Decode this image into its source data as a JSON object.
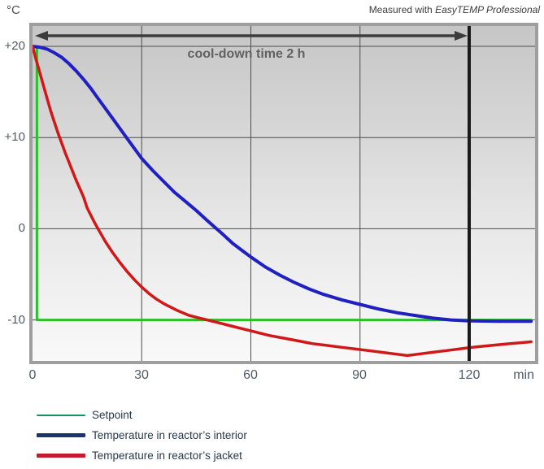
{
  "attribution": {
    "prefix": "Measured with ",
    "product": "EasyTEMP Professional"
  },
  "annotation": {
    "cooldown_label": "cool-down time 2 h",
    "arrow_from_min": 0,
    "arrow_to_min": 120
  },
  "axes": {
    "y_unit": "°C",
    "x_unit": "min",
    "y_ticks": [
      "+20",
      "+10",
      "0",
      "-10"
    ],
    "y_tick_values": [
      20,
      10,
      0,
      -10
    ],
    "x_ticks": [
      "0",
      "30",
      "60",
      "90",
      "120"
    ],
    "x_tick_values": [
      0,
      30,
      60,
      90,
      120
    ]
  },
  "legend": [
    {
      "label": "Setpoint",
      "color": "#15955d"
    },
    {
      "label": "Temperature in reactor’s interior",
      "color": "#1e3272"
    },
    {
      "label": "Temperature in reactor’s jacket",
      "color": "#c41a2b"
    }
  ],
  "colors": {
    "grid": "#4d4d4d",
    "marker_line": "#1a1a1a",
    "arrow": "#3c3c3c",
    "plot_border": "#9e9e9e"
  },
  "chart_data": {
    "type": "line",
    "title": "",
    "xlabel": "min",
    "ylabel": "°C",
    "xlim": [
      0,
      137
    ],
    "ylim": [
      -14.7,
      22.3
    ],
    "x_gridlines": [
      30,
      60,
      90
    ],
    "y_gridlines": [
      20,
      10,
      0,
      -10
    ],
    "marker_line_x": 120,
    "series": [
      {
        "name": "Setpoint",
        "color": "#2dbe2d",
        "width": 3,
        "points": [
          [
            1.2,
            20
          ],
          [
            1.2,
            -10
          ],
          [
            137,
            -10
          ]
        ]
      },
      {
        "name": "Temperature in reactor's interior",
        "color": "#2020c0",
        "width": 4,
        "points": [
          [
            0,
            20
          ],
          [
            2,
            19.9
          ],
          [
            4,
            19.7
          ],
          [
            6,
            19.3
          ],
          [
            8,
            18.8
          ],
          [
            10,
            18.1
          ],
          [
            12,
            17.3
          ],
          [
            14,
            16.4
          ],
          [
            16,
            15.4
          ],
          [
            18,
            14.3
          ],
          [
            20,
            13.2
          ],
          [
            22,
            12.1
          ],
          [
            24,
            11.0
          ],
          [
            26,
            9.9
          ],
          [
            28,
            8.8
          ],
          [
            30,
            7.7
          ],
          [
            33,
            6.4
          ],
          [
            36,
            5.2
          ],
          [
            39,
            4.0
          ],
          [
            42,
            3.0
          ],
          [
            45,
            2.0
          ],
          [
            48,
            0.9
          ],
          [
            50,
            0.2
          ],
          [
            52,
            -0.5
          ],
          [
            55,
            -1.6
          ],
          [
            58,
            -2.5
          ],
          [
            60,
            -3.1
          ],
          [
            64,
            -4.2
          ],
          [
            68,
            -5.1
          ],
          [
            72,
            -5.9
          ],
          [
            76,
            -6.6
          ],
          [
            80,
            -7.2
          ],
          [
            85,
            -7.8
          ],
          [
            90,
            -8.3
          ],
          [
            95,
            -8.8
          ],
          [
            100,
            -9.2
          ],
          [
            105,
            -9.5
          ],
          [
            110,
            -9.8
          ],
          [
            115,
            -10.0
          ],
          [
            120,
            -10.1
          ],
          [
            128,
            -10.15
          ],
          [
            137,
            -10.15
          ]
        ]
      },
      {
        "name": "Temperature in reactor's jacket",
        "color": "#d01818",
        "width": 3.5,
        "points": [
          [
            0,
            20
          ],
          [
            1,
            18.5
          ],
          [
            2,
            17.1
          ],
          [
            3,
            15.7
          ],
          [
            4,
            14.3
          ],
          [
            5,
            12.9
          ],
          [
            6,
            11.7
          ],
          [
            7,
            10.5
          ],
          [
            8,
            9.4
          ],
          [
            9,
            8.3
          ],
          [
            10,
            7.3
          ],
          [
            11,
            6.3
          ],
          [
            12,
            5.3
          ],
          [
            13,
            4.4
          ],
          [
            14,
            3.5
          ],
          [
            15,
            2.3
          ],
          [
            16,
            1.5
          ],
          [
            17,
            0.7
          ],
          [
            18,
            0.0
          ],
          [
            19,
            -0.7
          ],
          [
            20,
            -1.4
          ],
          [
            22,
            -2.6
          ],
          [
            24,
            -3.7
          ],
          [
            26,
            -4.7
          ],
          [
            28,
            -5.6
          ],
          [
            30,
            -6.4
          ],
          [
            32,
            -7.1
          ],
          [
            34,
            -7.7
          ],
          [
            36,
            -8.2
          ],
          [
            38,
            -8.6
          ],
          [
            40,
            -9.0
          ],
          [
            43,
            -9.5
          ],
          [
            46,
            -9.8
          ],
          [
            49,
            -10.1
          ],
          [
            52,
            -10.4
          ],
          [
            55,
            -10.7
          ],
          [
            58,
            -11.0
          ],
          [
            61,
            -11.3
          ],
          [
            65,
            -11.7
          ],
          [
            69,
            -12.0
          ],
          [
            73,
            -12.3
          ],
          [
            77,
            -12.6
          ],
          [
            81,
            -12.8
          ],
          [
            85,
            -13.0
          ],
          [
            89,
            -13.2
          ],
          [
            93,
            -13.4
          ],
          [
            97,
            -13.6
          ],
          [
            100,
            -13.75
          ],
          [
            103,
            -13.9
          ],
          [
            106,
            -13.75
          ],
          [
            110,
            -13.55
          ],
          [
            114,
            -13.35
          ],
          [
            118,
            -13.15
          ],
          [
            122,
            -12.95
          ],
          [
            126,
            -12.8
          ],
          [
            130,
            -12.65
          ],
          [
            137,
            -12.4
          ]
        ]
      }
    ]
  }
}
